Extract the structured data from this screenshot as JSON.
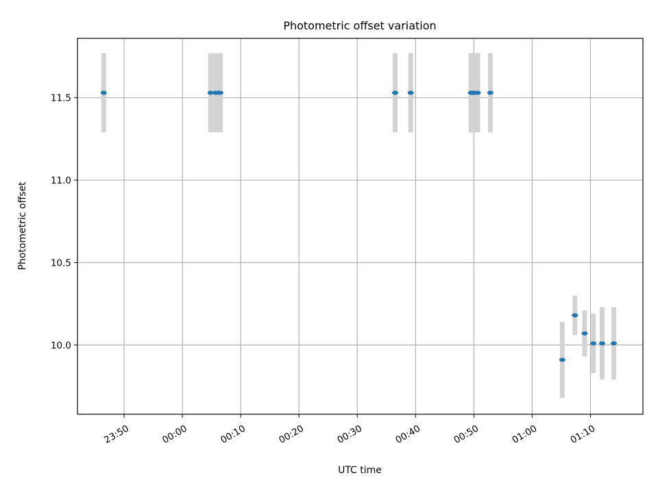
{
  "chart_data": {
    "type": "scatter",
    "title": "Photometric offset variation",
    "xlabel": "UTC time",
    "ylabel": "Photometric offset",
    "x_ticks": [
      "23:50",
      "00:00",
      "00:10",
      "00:20",
      "00:30",
      "00:40",
      "00:50",
      "01:00",
      "01:10"
    ],
    "y_ticks": [
      "10.0",
      "10.5",
      "11.0",
      "11.5"
    ],
    "xlim": [
      "23:42",
      "01:19"
    ],
    "ylim": [
      9.58,
      11.86
    ],
    "grid": true,
    "point_color": "#1f77b4",
    "errorbar_color": "#d3d3d3",
    "points": [
      {
        "x": "23:46:30",
        "y": 11.53,
        "err": 0.24
      },
      {
        "x": "00:04:50",
        "y": 11.53,
        "err": 0.24
      },
      {
        "x": "00:05:40",
        "y": 11.53,
        "err": 0.24
      },
      {
        "x": "00:06:10",
        "y": 11.53,
        "err": 0.24
      },
      {
        "x": "00:06:30",
        "y": 11.53,
        "err": 0.24
      },
      {
        "x": "00:36:30",
        "y": 11.53,
        "err": 0.24
      },
      {
        "x": "00:39:10",
        "y": 11.53,
        "err": 0.24
      },
      {
        "x": "00:49:30",
        "y": 11.53,
        "err": 0.24
      },
      {
        "x": "00:49:50",
        "y": 11.53,
        "err": 0.24
      },
      {
        "x": "00:50:10",
        "y": 11.53,
        "err": 0.24
      },
      {
        "x": "00:50:40",
        "y": 11.53,
        "err": 0.24
      },
      {
        "x": "00:52:50",
        "y": 11.53,
        "err": 0.24
      },
      {
        "x": "01:05:10",
        "y": 9.91,
        "err": 0.23
      },
      {
        "x": "01:07:20",
        "y": 10.18,
        "err": 0.12
      },
      {
        "x": "01:09:00",
        "y": 10.07,
        "err": 0.14
      },
      {
        "x": "01:10:30",
        "y": 10.01,
        "err": 0.18
      },
      {
        "x": "01:12:00",
        "y": 10.01,
        "err": 0.22
      },
      {
        "x": "01:14:00",
        "y": 10.01,
        "err": 0.22
      }
    ]
  }
}
